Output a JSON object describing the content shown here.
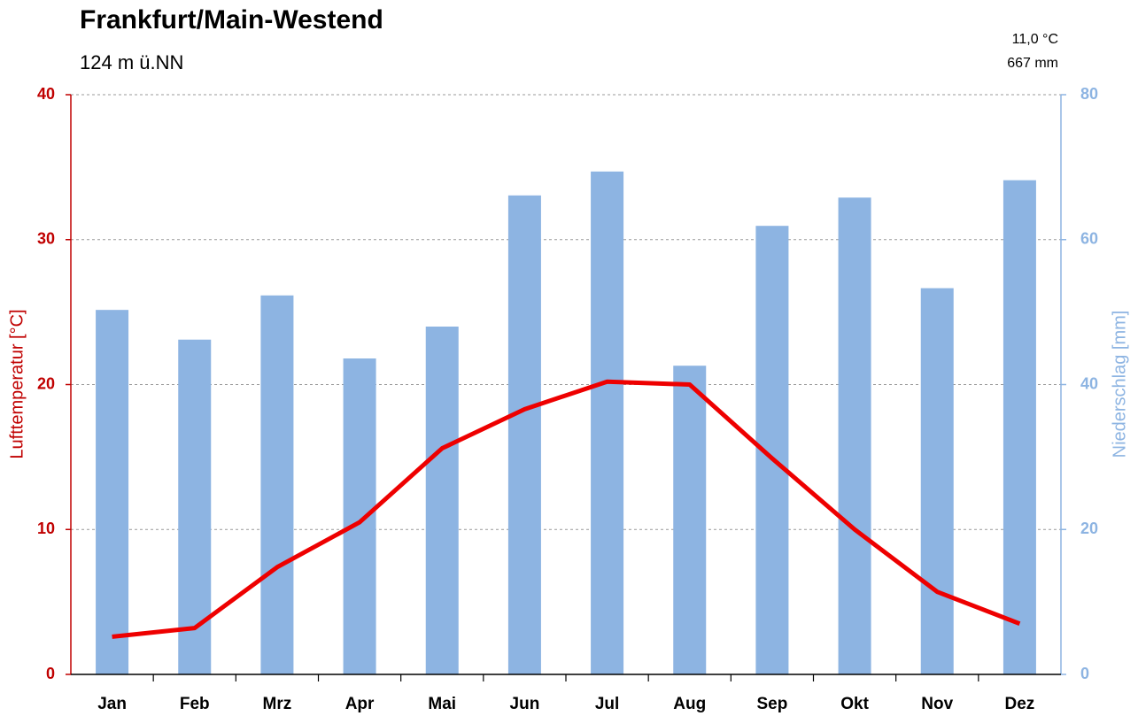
{
  "chart_data": {
    "type": "bar-line",
    "title": "Frankfurt/Main-Westend",
    "subtitle": "124 m ü.NN",
    "annotations": [
      "11,0 °C",
      "667 mm"
    ],
    "ylabel": "Lufttemperatur [°C]",
    "y2label": "Niederschlag [mm]",
    "categories": [
      "Jan",
      "Feb",
      "Mrz",
      "Apr",
      "Mai",
      "Jun",
      "Jul",
      "Aug",
      "Sep",
      "Okt",
      "Nov",
      "Dez"
    ],
    "series": [
      {
        "type": "bar",
        "axis": "y2",
        "color": "#8db4e2",
        "values": [
          50.3,
          46.2,
          52.3,
          43.6,
          48.0,
          66.1,
          69.4,
          42.6,
          61.9,
          65.8,
          53.3,
          68.2
        ]
      },
      {
        "type": "line",
        "axis": "y",
        "color": "#ee0000",
        "values": [
          2.6,
          3.2,
          7.4,
          10.5,
          15.6,
          18.3,
          20.2,
          20.0,
          14.9,
          10.0,
          5.7,
          3.5
        ]
      }
    ],
    "ylim": [
      0,
      40
    ],
    "yticks": [
      0,
      10,
      20,
      30,
      40
    ],
    "ycolor": "#c00000",
    "y2lim": [
      0,
      80
    ],
    "y2ticks": [
      0,
      20,
      40,
      60,
      80
    ],
    "y2color": "#8db4e2",
    "grid": true
  }
}
